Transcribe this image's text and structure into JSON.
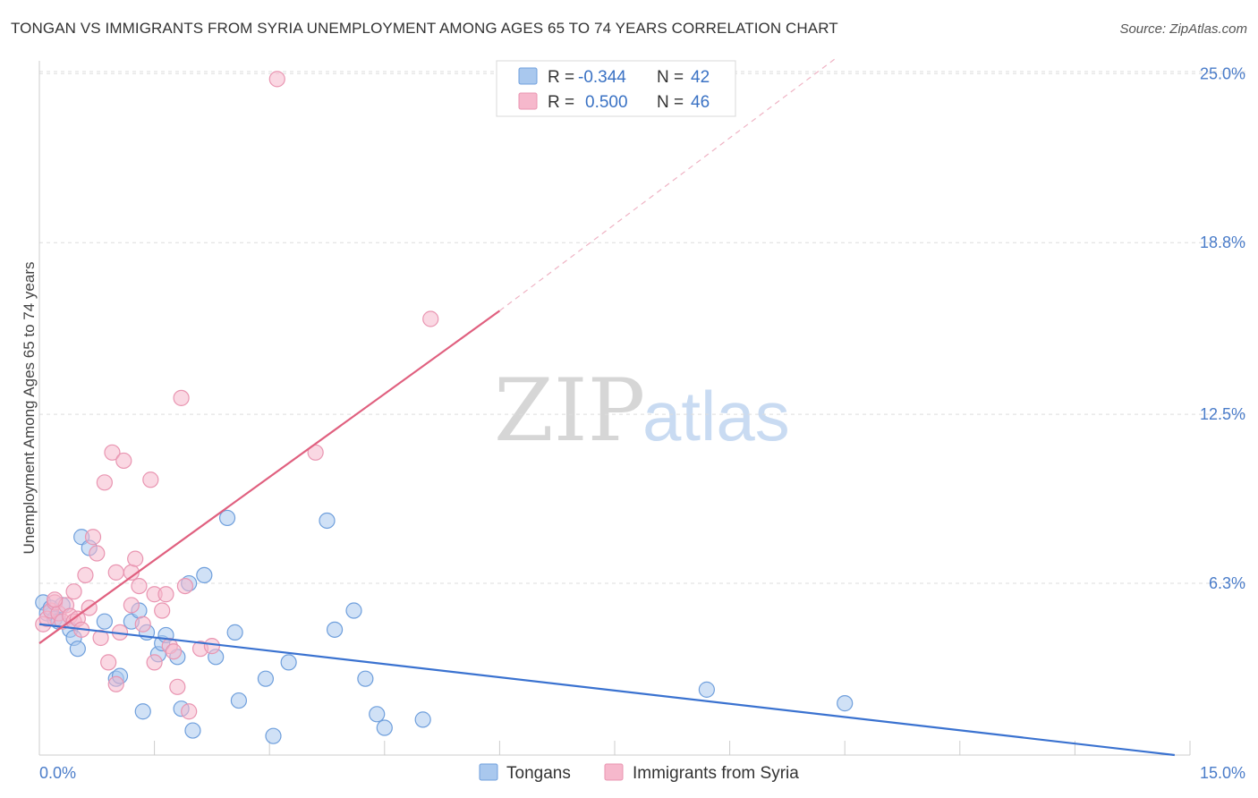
{
  "title": "TONGAN VS IMMIGRANTS FROM SYRIA UNEMPLOYMENT AMONG AGES 65 TO 74 YEARS CORRELATION CHART",
  "source": "Source: ZipAtlas.com",
  "watermark": {
    "zip": "ZIP",
    "atlas": "atlas"
  },
  "legend_top": [
    {
      "r_label": "R =",
      "r_value": "-0.344",
      "n_label": "N =",
      "n_value": "42",
      "color": "#a9c8ee"
    },
    {
      "r_label": "R =",
      "r_value": "0.500",
      "n_label": "N =",
      "n_value": "46",
      "color": "#f6b8cc"
    }
  ],
  "chart_data": {
    "type": "scatter",
    "title": "TONGAN VS IMMIGRANTS FROM SYRIA UNEMPLOYMENT AMONG AGES 65 TO 74 YEARS CORRELATION CHART",
    "ylabel": "Unemployment Among Ages 65 to 74 years",
    "xlim": [
      0,
      15
    ],
    "ylim": [
      0,
      25.6
    ],
    "x_tick_labels": [
      "0.0%",
      "15.0%"
    ],
    "x_tick_values": [
      0,
      15
    ],
    "y_tick_labels": [
      "6.3%",
      "12.5%",
      "18.8%",
      "25.0%"
    ],
    "y_tick_values": [
      6.3,
      12.5,
      18.8,
      25.0
    ],
    "grid": true,
    "legend_placement": "bottom-center",
    "series": [
      {
        "name": "Tongans",
        "color": "#a9c8ee",
        "stroke": "#6f9fdc",
        "line_color": "#3a72d0",
        "trend": {
          "x0": 0,
          "y0": 4.8,
          "x1": 14.8,
          "y1": 0.0
        },
        "points": [
          [
            0.05,
            5.6
          ],
          [
            0.1,
            5.2
          ],
          [
            0.15,
            5.4
          ],
          [
            0.2,
            5.0
          ],
          [
            0.25,
            4.9
          ],
          [
            0.3,
            5.5
          ],
          [
            0.4,
            4.6
          ],
          [
            0.45,
            4.3
          ],
          [
            0.55,
            8.0
          ],
          [
            0.65,
            7.6
          ],
          [
            0.5,
            3.9
          ],
          [
            0.85,
            4.9
          ],
          [
            1.0,
            2.8
          ],
          [
            1.05,
            2.9
          ],
          [
            1.2,
            4.9
          ],
          [
            1.3,
            5.3
          ],
          [
            1.4,
            4.5
          ],
          [
            1.35,
            1.6
          ],
          [
            1.55,
            3.7
          ],
          [
            1.6,
            4.1
          ],
          [
            1.65,
            4.4
          ],
          [
            1.8,
            3.6
          ],
          [
            1.85,
            1.7
          ],
          [
            1.95,
            6.3
          ],
          [
            2.0,
            0.9
          ],
          [
            2.15,
            6.6
          ],
          [
            2.3,
            3.6
          ],
          [
            2.45,
            8.7
          ],
          [
            2.55,
            4.5
          ],
          [
            2.6,
            2.0
          ],
          [
            2.95,
            2.8
          ],
          [
            3.05,
            0.7
          ],
          [
            3.25,
            3.4
          ],
          [
            3.75,
            8.6
          ],
          [
            3.85,
            4.6
          ],
          [
            4.1,
            5.3
          ],
          [
            4.25,
            2.8
          ],
          [
            4.4,
            1.5
          ],
          [
            4.5,
            1.0
          ],
          [
            5.0,
            1.3
          ],
          [
            8.7,
            2.4
          ],
          [
            10.5,
            1.9
          ]
        ]
      },
      {
        "name": "Immigrants from Syria",
        "color": "#f6b8cc",
        "stroke": "#e995b1",
        "line_color": "#e0607f",
        "trend": {
          "x0": 0,
          "y0": 4.1,
          "x1": 6.0,
          "y1": 16.3
        },
        "trend_dashed": {
          "x0": 6.0,
          "y0": 16.3,
          "x1": 10.4,
          "y1": 25.6
        },
        "points": [
          [
            0.05,
            4.8
          ],
          [
            0.1,
            5.0
          ],
          [
            0.15,
            5.3
          ],
          [
            0.2,
            5.6
          ],
          [
            0.25,
            5.2
          ],
          [
            0.3,
            4.9
          ],
          [
            0.35,
            5.5
          ],
          [
            0.4,
            5.1
          ],
          [
            0.45,
            4.9
          ],
          [
            0.5,
            5.0
          ],
          [
            0.55,
            4.6
          ],
          [
            0.45,
            6.0
          ],
          [
            0.6,
            6.6
          ],
          [
            0.7,
            8.0
          ],
          [
            0.75,
            7.4
          ],
          [
            0.8,
            4.3
          ],
          [
            0.85,
            10.0
          ],
          [
            0.9,
            3.4
          ],
          [
            0.95,
            11.1
          ],
          [
            1.0,
            6.7
          ],
          [
            1.0,
            2.6
          ],
          [
            1.05,
            4.5
          ],
          [
            1.1,
            10.8
          ],
          [
            1.2,
            5.5
          ],
          [
            1.2,
            6.7
          ],
          [
            1.25,
            7.2
          ],
          [
            1.3,
            6.2
          ],
          [
            1.35,
            4.8
          ],
          [
            1.45,
            10.1
          ],
          [
            1.5,
            3.4
          ],
          [
            1.5,
            5.9
          ],
          [
            1.6,
            5.3
          ],
          [
            1.65,
            5.9
          ],
          [
            1.7,
            4.0
          ],
          [
            1.75,
            3.8
          ],
          [
            1.8,
            2.5
          ],
          [
            1.85,
            13.1
          ],
          [
            1.9,
            6.2
          ],
          [
            1.95,
            1.6
          ],
          [
            2.1,
            3.9
          ],
          [
            2.25,
            4.0
          ],
          [
            3.1,
            24.8
          ],
          [
            3.6,
            11.1
          ],
          [
            5.1,
            16.0
          ],
          [
            0.2,
            5.7
          ],
          [
            0.65,
            5.4
          ]
        ]
      }
    ]
  },
  "legend_bottom": [
    {
      "label": "Tongans",
      "color": "#a9c8ee"
    },
    {
      "label": "Immigrants from Syria",
      "color": "#f6b8cc"
    }
  ]
}
